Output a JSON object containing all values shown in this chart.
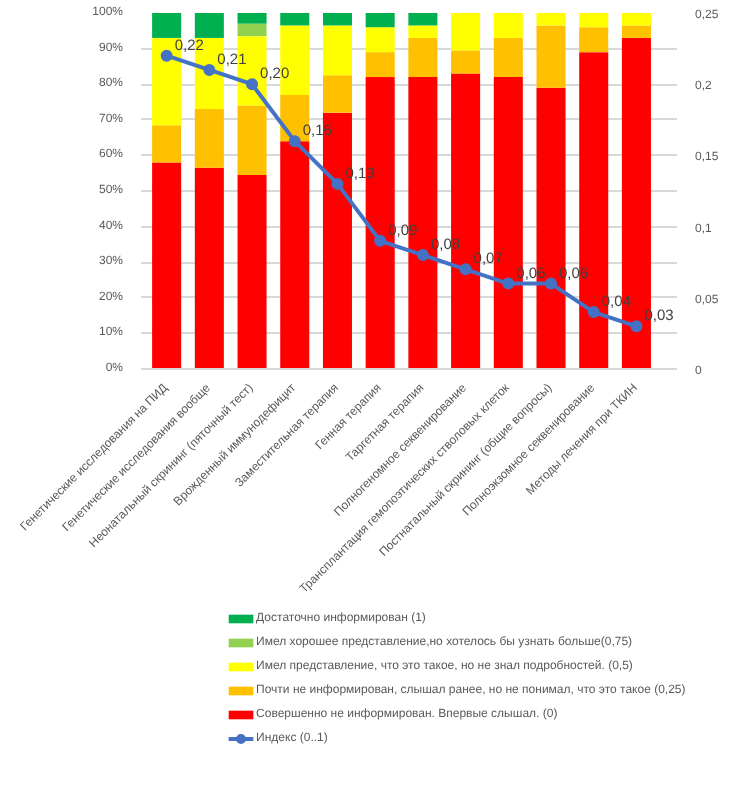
{
  "chart_data": {
    "type": "bar",
    "stacked": true,
    "categories": [
      "Генетические исследования на ПИД",
      "Генетические исследования вообще",
      "Неонатальный скрининг (пяточный тест)",
      "Врожденный иммунодефицит",
      "Заместительная терапия",
      "Генная терапия",
      "Таргетная терапия",
      "Полногеномное секвенирование",
      "Трансплантация гемопоэтических стволовых клеток",
      "Постнатальный скрининг (общие вопросы)",
      "Полноэкзомное секвенирование",
      "Методы лечения при ТКИН"
    ],
    "series": [
      {
        "name": "Совершенно не информирован. Впервые слышал. (0)",
        "color": "#ff0000",
        "values": [
          58,
          56.5,
          54.5,
          64,
          72,
          82,
          82,
          83,
          82,
          79,
          89,
          93
        ]
      },
      {
        "name": "Почти не информирован, слышал ранее, но не понимал, что это такое (0,25)",
        "color": "#ffc000",
        "values": [
          10.5,
          16.5,
          19.5,
          13,
          10.5,
          7,
          11,
          6.5,
          11,
          17.5,
          7,
          3.5
        ]
      },
      {
        "name": "Имел представление, что это такое, но не знал подробностей. (0,5)",
        "color": "#ffff00",
        "values": [
          24.5,
          20,
          19.5,
          19.5,
          14,
          7,
          3.5,
          10.5,
          7,
          3.5,
          4,
          3.5
        ]
      },
      {
        "name": "Имел хорошее представление,но хотелось бы узнать больше(0,75)",
        "color": "#92d050",
        "values": [
          0,
          0,
          3.5,
          0,
          0,
          0,
          0,
          0,
          0,
          0,
          0,
          0
        ]
      },
      {
        "name": "Достаточно информирован (1)",
        "color": "#00b050",
        "values": [
          7,
          7,
          3,
          3.5,
          3.5,
          4,
          3.5,
          0,
          0,
          0,
          0,
          0
        ]
      },
      {
        "name": "Индекс (0..1)",
        "type": "line",
        "axis": "y2",
        "color": "#4472c4",
        "marker": "circle",
        "values": [
          0.22,
          0.21,
          0.2,
          0.16,
          0.13,
          0.09,
          0.08,
          0.07,
          0.06,
          0.06,
          0.04,
          0.03
        ],
        "value_labels": [
          "0,22",
          "0,21",
          "0,20",
          "0,16",
          "0,13",
          "0,09",
          "0,08",
          "0,07",
          "0,06",
          "0,06",
          "0,04",
          "0,03"
        ]
      }
    ],
    "ylim": [
      0,
      100
    ],
    "yticks": [
      {
        "value": 0,
        "label": "0%"
      },
      {
        "value": 10,
        "label": "10%"
      },
      {
        "value": 20,
        "label": "20%"
      },
      {
        "value": 30,
        "label": "30%"
      },
      {
        "value": 40,
        "label": "40%"
      },
      {
        "value": 50,
        "label": "50%"
      },
      {
        "value": 60,
        "label": "60%"
      },
      {
        "value": 70,
        "label": "70%"
      },
      {
        "value": 80,
        "label": "80%"
      },
      {
        "value": 90,
        "label": "90%"
      },
      {
        "value": 100,
        "label": "100%"
      }
    ],
    "y2lim": [
      0,
      0.25
    ],
    "y2ticks": [
      0,
      {
        "value": 0.05,
        "label": "0,05"
      },
      {
        "value": 0.1,
        "label": "0,1"
      },
      {
        "value": 0.15,
        "label": "0,15"
      },
      {
        "value": 0.2,
        "label": "0,2"
      },
      {
        "value": 0.25,
        "label": "0,25"
      }
    ],
    "grid": "y",
    "legend": "bottom"
  }
}
